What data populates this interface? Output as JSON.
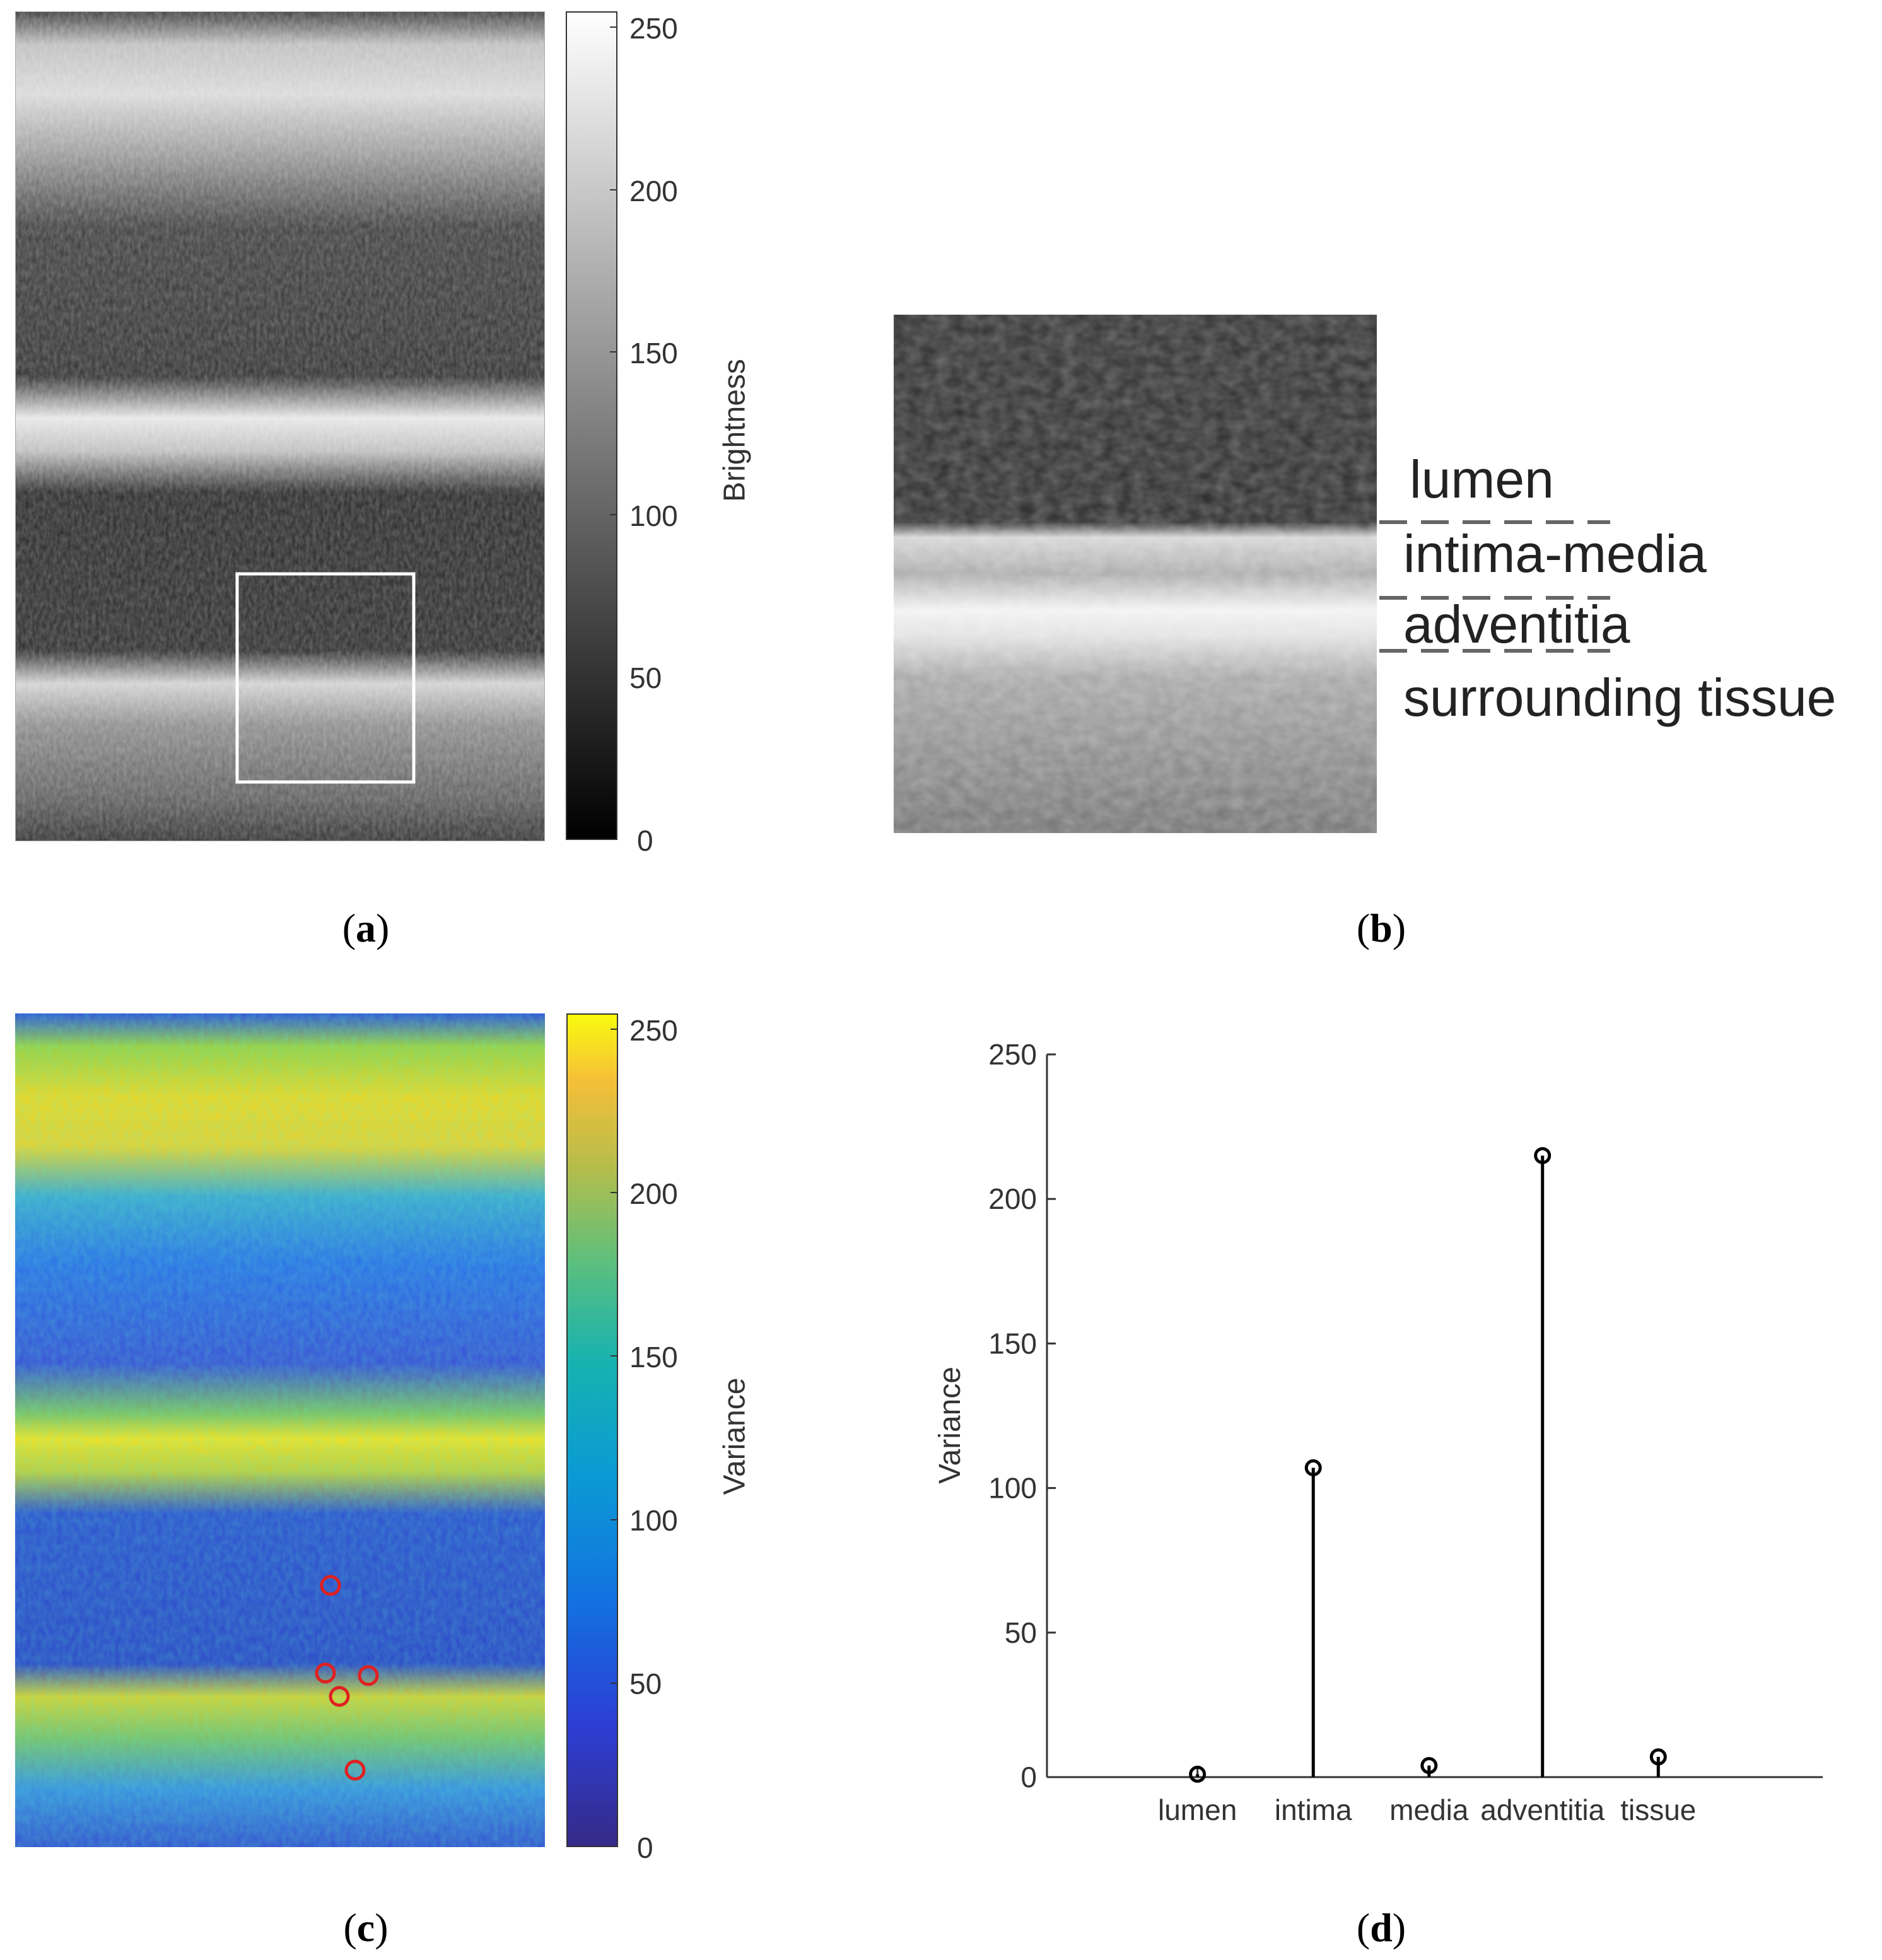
{
  "panels": {
    "a": {
      "caption_letter": "a",
      "colorbar": {
        "label": "Brightness",
        "ticks": [
          "0",
          "50",
          "100",
          "150",
          "200",
          "250"
        ],
        "colormap": "gray"
      }
    },
    "b": {
      "caption_letter": "b",
      "layers": [
        "lumen",
        "intima-media",
        "adventitia",
        "surrounding tissue"
      ]
    },
    "c": {
      "caption_letter": "c",
      "colorbar": {
        "label": "Variance",
        "ticks": [
          "0",
          "50",
          "100",
          "150",
          "200",
          "250"
        ],
        "colormap": "parula"
      },
      "marker_color": "#e02020"
    },
    "d": {
      "caption_letter": "d"
    }
  },
  "chart_data": {
    "type": "stem",
    "categories": [
      "lumen",
      "intima",
      "media",
      "adventitia",
      "tissue"
    ],
    "values": [
      1,
      107,
      4,
      215,
      7
    ],
    "ylabel": "Variance",
    "xlabel": "",
    "ylim": [
      0,
      250
    ],
    "yticks": [
      0,
      50,
      100,
      150,
      200,
      250
    ],
    "grid": false,
    "marker": "open-circle"
  }
}
